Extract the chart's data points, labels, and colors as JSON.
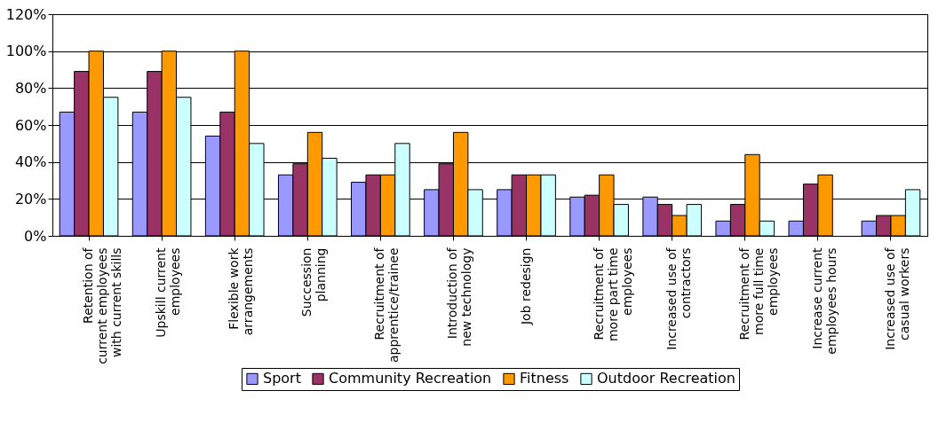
{
  "chart_data": {
    "type": "bar",
    "categories": [
      "Retention of\ncurrent employees\nwith current skills",
      "Upskill current\nemployees",
      "Flexible work\narrangements",
      "Succession\nplanning",
      "Recruitment of\napprentice/trainee",
      "Introduction of\nnew technology",
      "Job redesign",
      "Recruitment of\nmore part time\nemployees",
      "Increased use of\ncontractors",
      "Recruitment of\nmore full time\nemployees",
      "Increase current\nemployees hours",
      "Increased use of\ncasual workers"
    ],
    "series": [
      {
        "name": "Sport",
        "color": "#9999ff",
        "values": [
          67,
          67,
          54,
          33,
          29,
          25,
          25,
          21,
          21,
          8,
          8,
          8
        ]
      },
      {
        "name": "Community Recreation",
        "color": "#993366",
        "values": [
          89,
          89,
          67,
          39,
          33,
          39,
          33,
          22,
          17,
          17,
          28,
          11
        ]
      },
      {
        "name": "Fitness",
        "color": "#ff9900",
        "values": [
          100,
          100,
          100,
          56,
          33,
          56,
          33,
          33,
          11,
          44,
          33,
          11
        ]
      },
      {
        "name": "Outdoor Recreation",
        "color": "#ccffff",
        "values": [
          75,
          75,
          50,
          42,
          50,
          25,
          33,
          17,
          17,
          8,
          null,
          25
        ]
      }
    ],
    "ylim": [
      0,
      120
    ],
    "yticks": [
      {
        "value": 0,
        "label": "0%"
      },
      {
        "value": 20,
        "label": "20%"
      },
      {
        "value": 40,
        "label": "40%"
      },
      {
        "value": 60,
        "label": "60%"
      },
      {
        "value": 80,
        "label": "80%"
      },
      {
        "value": 100,
        "label": "100%"
      },
      {
        "value": 120,
        "label": "120%"
      }
    ],
    "grid": "y",
    "legend": "bottom"
  }
}
